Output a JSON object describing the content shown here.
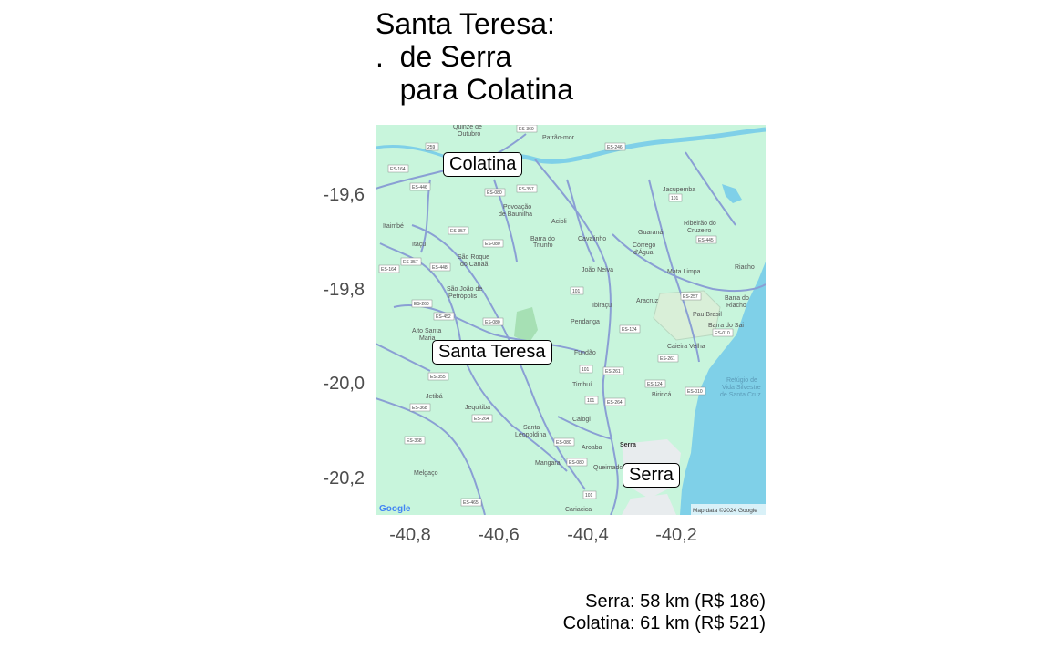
{
  "title": {
    "line1": "Santa Teresa:",
    "line2": ".  de Serra",
    "line3": "   para Colatina"
  },
  "axes": {
    "y_ticks": [
      "-19,6",
      "-19,8",
      "-20,0",
      "-20,2"
    ],
    "x_ticks": [
      "-40,8",
      "-40,6",
      "-40,4",
      "-40,2"
    ]
  },
  "map": {
    "labels": {
      "colatina": "Colatina",
      "santa_teresa": "Santa Teresa",
      "serra": "Serra"
    },
    "place_names": [
      "Quinze de Outubro",
      "Patrão-mor",
      "Jacupemba",
      "Povoação de Baunilha",
      "Acioli",
      "Ribeirão do Cruzeiro",
      "Guaraná",
      "Itaimbé",
      "Itaçu",
      "São Roque do Canaã",
      "Barra do Triunfo",
      "Cavalinho",
      "Córrego d'Água",
      "Mata Limpa",
      "Riacho",
      "João Neiva",
      "São João de Petrópolis",
      "Ibiraçu",
      "Aracruz",
      "Barra do Riacho",
      "Pau Brasil",
      "Barra do Sai",
      "Alto Santa Maria",
      "Pendanga",
      "Fundão",
      "Caieira Velha",
      "Refúgio de Vida Silvestre de Santa Cruz",
      "Timbuí",
      "Jetibá",
      "Jequitiba",
      "Biriricá",
      "Calogi",
      "Santa Leopoldina",
      "Aroaba",
      "Serra",
      "Mangaraí",
      "Queimado",
      "Melgaço",
      "Cariacica"
    ],
    "highway_shields": [
      "ES-360",
      "ES-246",
      "ES-164",
      "ES-446",
      "ES-080",
      "ES-357",
      "101",
      "ES-445",
      "ES-448",
      "ES-260",
      "ES-452",
      "ES-257",
      "ES-124",
      "ES-010",
      "ES-261",
      "ES-355",
      "ES-368",
      "ES-264",
      "ES-465",
      "259"
    ],
    "attribution": "Map data ©2024 Google",
    "logo": "Google",
    "colors": {
      "land": "#c8f5dc",
      "water": "#7fd0e8",
      "roads": "#8a9fd4",
      "park": "#a6e0b4"
    }
  },
  "caption": {
    "line1": "Serra: 58 km (R$ 186)",
    "line2": "Colatina: 61 km (R$ 521)"
  }
}
